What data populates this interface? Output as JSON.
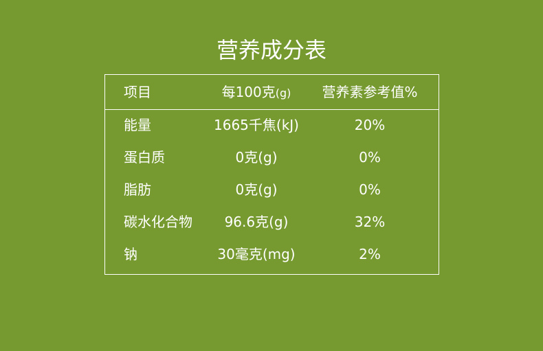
{
  "title": "营养成分表",
  "header": {
    "item": "项目",
    "per100": "每100克",
    "per100_unit": "(g)",
    "nrv": "营养素参考值%"
  },
  "rows": [
    {
      "item": "能量",
      "per100": "1665千焦(kJ)",
      "nrv": "20%"
    },
    {
      "item": "蛋白质",
      "per100": "0克(g)",
      "nrv": "0%"
    },
    {
      "item": "脂肪",
      "per100": "0克(g)",
      "nrv": "0%"
    },
    {
      "item": "碳水化合物",
      "per100": "96.6克(g)",
      "nrv": "32%"
    },
    {
      "item": "钠",
      "per100": "30毫克(mg)",
      "nrv": "2%"
    }
  ]
}
